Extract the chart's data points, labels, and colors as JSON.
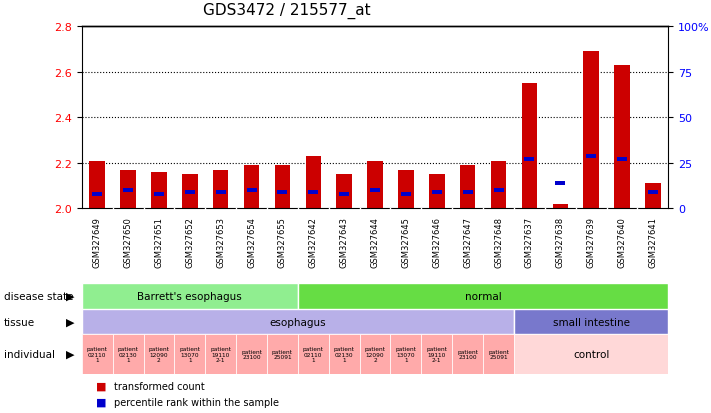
{
  "title": "GDS3472 / 215577_at",
  "samples": [
    "GSM327649",
    "GSM327650",
    "GSM327651",
    "GSM327652",
    "GSM327653",
    "GSM327654",
    "GSM327655",
    "GSM327642",
    "GSM327643",
    "GSM327644",
    "GSM327645",
    "GSM327646",
    "GSM327647",
    "GSM327648",
    "GSM327637",
    "GSM327638",
    "GSM327639",
    "GSM327640",
    "GSM327641"
  ],
  "red_values": [
    2.21,
    2.17,
    2.16,
    2.15,
    2.17,
    2.19,
    2.19,
    2.23,
    2.15,
    2.21,
    2.17,
    2.15,
    2.19,
    2.21,
    2.55,
    2.02,
    2.69,
    2.63,
    2.11
  ],
  "blue_pct": [
    8,
    10,
    8,
    9,
    9,
    10,
    9,
    9,
    8,
    10,
    8,
    9,
    9,
    10,
    27,
    14,
    29,
    27,
    9
  ],
  "ylim_left": [
    2.0,
    2.8
  ],
  "ylim_right": [
    0,
    100
  ],
  "yticks_left": [
    2.0,
    2.2,
    2.4,
    2.6,
    2.8
  ],
  "yticks_right": [
    0,
    25,
    50,
    75,
    100
  ],
  "ytick_labels_right": [
    "0",
    "25",
    "50",
    "75",
    "100%"
  ],
  "bar_baseline": 2.0,
  "disease_state_groups": [
    {
      "label": "Barrett's esophagus",
      "start": 0,
      "end": 7,
      "color": "#90EE90"
    },
    {
      "label": "normal",
      "start": 7,
      "end": 19,
      "color": "#66DD44"
    }
  ],
  "tissue_groups": [
    {
      "label": "esophagus",
      "start": 0,
      "end": 14,
      "color": "#B8B0E8"
    },
    {
      "label": "small intestine",
      "start": 14,
      "end": 19,
      "color": "#7878CC"
    }
  ],
  "individual_esoph": [
    {
      "label": "patient\n02110\n1",
      "start": 0,
      "end": 1
    },
    {
      "label": "patient\n02130\n1",
      "start": 1,
      "end": 2
    },
    {
      "label": "patient\n12090\n2",
      "start": 2,
      "end": 3
    },
    {
      "label": "patient\n13070\n1",
      "start": 3,
      "end": 4
    },
    {
      "label": "patient\n19110\n2-1",
      "start": 4,
      "end": 5
    },
    {
      "label": "patient\n23100",
      "start": 5,
      "end": 6
    },
    {
      "label": "patient\n25091",
      "start": 6,
      "end": 7
    },
    {
      "label": "patient\n02110\n1",
      "start": 7,
      "end": 8
    },
    {
      "label": "patient\n02130\n1",
      "start": 8,
      "end": 9
    },
    {
      "label": "patient\n12090\n2",
      "start": 9,
      "end": 10
    },
    {
      "label": "patient\n13070\n1",
      "start": 10,
      "end": 11
    },
    {
      "label": "patient\n19110\n2-1",
      "start": 11,
      "end": 12
    },
    {
      "label": "patient\n23100",
      "start": 12,
      "end": 13
    },
    {
      "label": "patient\n25091",
      "start": 13,
      "end": 14
    }
  ],
  "red_color": "#CC0000",
  "blue_color": "#0000CC",
  "bar_width": 0.5,
  "bg_color": "#F0F0F0"
}
